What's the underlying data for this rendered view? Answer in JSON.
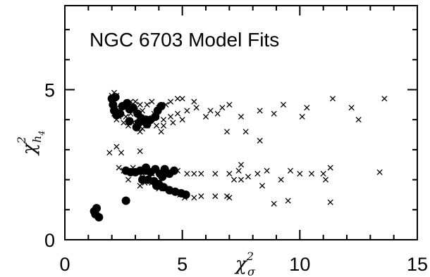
{
  "chart_data": {
    "type": "scatter",
    "title": "NGC 6703  Model Fits",
    "xlabel": "χ²σ",
    "ylabel": "χ²h4",
    "xlabel_parts": {
      "base": "χ",
      "sup": "2",
      "sub": "σ"
    },
    "ylabel_parts": {
      "base": "χ",
      "sup": "2",
      "sub": "h",
      "subsub": "4"
    },
    "xlim": [
      0,
      15
    ],
    "ylim": [
      0,
      7.8
    ],
    "x_ticks": [
      0,
      5,
      10,
      15
    ],
    "y_ticks": [
      0,
      5
    ],
    "grid": false,
    "legend": "none",
    "series": [
      {
        "marker": "cross",
        "points": [
          [
            2.0,
            4.8
          ],
          [
            2.1,
            4.9
          ],
          [
            2.2,
            4.8
          ],
          [
            2.1,
            4.6
          ],
          [
            2.2,
            4.4
          ],
          [
            2.1,
            4.2
          ],
          [
            2.2,
            4.0
          ],
          [
            2.3,
            4.1
          ],
          [
            2.4,
            4.3
          ],
          [
            2.6,
            4.5
          ],
          [
            2.8,
            4.6
          ],
          [
            3.0,
            4.6
          ],
          [
            3.2,
            4.5
          ],
          [
            3.0,
            4.3
          ],
          [
            2.8,
            4.2
          ],
          [
            2.6,
            4.1
          ],
          [
            2.5,
            3.9
          ],
          [
            2.7,
            3.8
          ],
          [
            2.9,
            3.9
          ],
          [
            3.1,
            3.8
          ],
          [
            3.3,
            3.7
          ],
          [
            3.5,
            3.8
          ],
          [
            3.2,
            3.6
          ],
          [
            3.4,
            3.9
          ],
          [
            3.6,
            4.0
          ],
          [
            3.8,
            4.2
          ],
          [
            4.0,
            4.4
          ],
          [
            4.3,
            4.5
          ],
          [
            4.5,
            4.6
          ],
          [
            4.8,
            4.7
          ],
          [
            5.0,
            4.7
          ],
          [
            5.5,
            4.6
          ],
          [
            3.7,
            4.6
          ],
          [
            3.5,
            4.5
          ],
          [
            3.3,
            4.3
          ],
          [
            3.9,
            4.1
          ],
          [
            4.2,
            4.0
          ],
          [
            4.5,
            4.1
          ],
          [
            4.8,
            4.2
          ],
          [
            5.2,
            4.3
          ],
          [
            5.6,
            4.4
          ],
          [
            6.2,
            4.3
          ],
          [
            6.7,
            4.4
          ],
          [
            7.0,
            4.5
          ],
          [
            5.0,
            4.0
          ],
          [
            4.6,
            3.9
          ],
          [
            4.2,
            3.8
          ],
          [
            3.9,
            3.8
          ],
          [
            4.1,
            3.6
          ],
          [
            6.0,
            4.1
          ],
          [
            6.5,
            4.2
          ],
          [
            6.9,
            3.6
          ],
          [
            7.5,
            4.1
          ],
          [
            7.7,
            3.6
          ],
          [
            8.3,
            3.3
          ],
          [
            8.3,
            4.3
          ],
          [
            8.9,
            4.2
          ],
          [
            9.3,
            4.5
          ],
          [
            10.1,
            4.1
          ],
          [
            10.3,
            4.4
          ],
          [
            11.4,
            4.7
          ],
          [
            12.2,
            4.4
          ],
          [
            12.5,
            4.0
          ],
          [
            13.6,
            4.7
          ],
          [
            1.9,
            2.9
          ],
          [
            2.2,
            3.1
          ],
          [
            2.4,
            2.9
          ],
          [
            3.2,
            2.95
          ],
          [
            2.3,
            2.4
          ],
          [
            2.5,
            2.3
          ],
          [
            2.7,
            2.0
          ],
          [
            2.9,
            2.4
          ],
          [
            3.1,
            2.3
          ],
          [
            3.3,
            2.2
          ],
          [
            3.5,
            2.3
          ],
          [
            3.7,
            2.2
          ],
          [
            3.9,
            2.3
          ],
          [
            4.1,
            2.2
          ],
          [
            4.3,
            2.3
          ],
          [
            4.5,
            2.25
          ],
          [
            4.8,
            2.3
          ],
          [
            5.2,
            2.2
          ],
          [
            5.5,
            2.2
          ],
          [
            5.8,
            2.2
          ],
          [
            3.2,
            1.8
          ],
          [
            3.4,
            1.9
          ],
          [
            3.7,
            1.9
          ],
          [
            4.0,
            1.7
          ],
          [
            4.3,
            1.7
          ],
          [
            4.6,
            1.6
          ],
          [
            4.9,
            1.5
          ],
          [
            5.1,
            1.4
          ],
          [
            5.5,
            1.4
          ],
          [
            5.8,
            1.45
          ],
          [
            6.4,
            1.45
          ],
          [
            6.9,
            1.45
          ],
          [
            7.0,
            1.4
          ],
          [
            6.4,
            2.2
          ],
          [
            7.0,
            2.2
          ],
          [
            7.4,
            2.3
          ],
          [
            7.5,
            2.5
          ],
          [
            7.2,
            2.0
          ],
          [
            7.5,
            2.0
          ],
          [
            7.8,
            2.1
          ],
          [
            8.2,
            2.2
          ],
          [
            8.4,
            1.8
          ],
          [
            8.6,
            2.3
          ],
          [
            8.9,
            1.2
          ],
          [
            9.2,
            2.0
          ],
          [
            9.5,
            1.3
          ],
          [
            9.6,
            2.3
          ],
          [
            10.0,
            2.2
          ],
          [
            10.5,
            2.2
          ],
          [
            11.0,
            2.2
          ],
          [
            11.1,
            2.0
          ],
          [
            11.3,
            2.4
          ],
          [
            11.3,
            1.25
          ],
          [
            13.4,
            2.25
          ]
        ]
      },
      {
        "marker": "dot",
        "points": [
          [
            2.0,
            4.7
          ],
          [
            2.05,
            4.5
          ],
          [
            2.1,
            4.3
          ],
          [
            2.2,
            4.15
          ],
          [
            2.15,
            4.75
          ],
          [
            2.35,
            4.2
          ],
          [
            2.45,
            4.45
          ],
          [
            2.65,
            4.55
          ],
          [
            2.75,
            4.35
          ],
          [
            2.9,
            4.4
          ],
          [
            3.1,
            4.2
          ],
          [
            3.25,
            4.05
          ],
          [
            3.45,
            4.0
          ],
          [
            3.65,
            4.0
          ],
          [
            3.85,
            4.1
          ],
          [
            3.05,
            3.75
          ],
          [
            3.15,
            3.9
          ],
          [
            3.5,
            3.85
          ],
          [
            2.75,
            3.95
          ],
          [
            3.95,
            4.3
          ],
          [
            4.1,
            4.45
          ],
          [
            2.6,
            2.3
          ],
          [
            2.8,
            2.25
          ],
          [
            3.0,
            2.25
          ],
          [
            3.2,
            2.3
          ],
          [
            3.45,
            2.3
          ],
          [
            3.65,
            2.25
          ],
          [
            3.85,
            2.35
          ],
          [
            4.05,
            2.2
          ],
          [
            4.25,
            2.35
          ],
          [
            4.45,
            2.2
          ],
          [
            3.3,
            2.0
          ],
          [
            3.55,
            2.0
          ],
          [
            3.8,
            1.95
          ],
          [
            4.0,
            1.85
          ],
          [
            4.2,
            1.75
          ],
          [
            4.45,
            1.65
          ],
          [
            4.7,
            1.6
          ],
          [
            4.95,
            1.55
          ],
          [
            5.15,
            1.5
          ],
          [
            3.9,
            1.8
          ],
          [
            4.15,
            2.1
          ],
          [
            3.45,
            2.4
          ],
          [
            4.65,
            2.3
          ],
          [
            2.6,
            1.3
          ],
          [
            1.25,
            0.95
          ],
          [
            1.35,
            1.05
          ],
          [
            1.3,
            0.85
          ],
          [
            1.45,
            0.75
          ]
        ]
      }
    ]
  }
}
